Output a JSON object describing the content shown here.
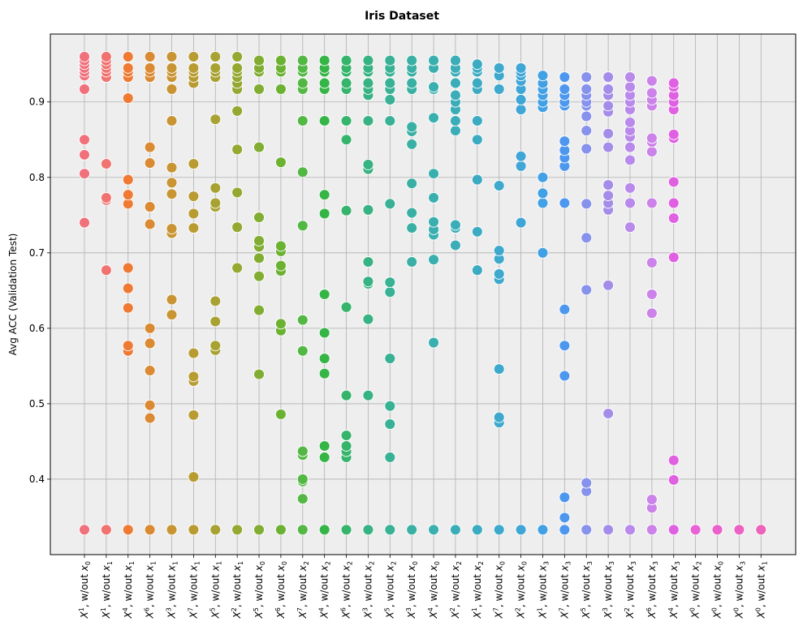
{
  "chart_data": {
    "type": "scatter",
    "title": "Iris Dataset",
    "xlabel": "",
    "ylabel": "Avg ACC (Validation Test)",
    "ylim": [
      0.3,
      0.99
    ],
    "yticks": [
      0.4,
      0.5,
      0.6,
      0.7,
      0.8,
      0.9
    ],
    "grid": true,
    "legend": "none",
    "categories": [
      {
        "pow": "1",
        "sub": "0"
      },
      {
        "pow": "1",
        "sub": "1"
      },
      {
        "pow": "4",
        "sub": "1"
      },
      {
        "pow": "6",
        "sub": "1"
      },
      {
        "pow": "3",
        "sub": "1"
      },
      {
        "pow": "7",
        "sub": "1"
      },
      {
        "pow": "5",
        "sub": "1"
      },
      {
        "pow": "2",
        "sub": "1"
      },
      {
        "pow": "5",
        "sub": "0"
      },
      {
        "pow": "6",
        "sub": "0"
      },
      {
        "pow": "7",
        "sub": "2"
      },
      {
        "pow": "4",
        "sub": "2"
      },
      {
        "pow": "6",
        "sub": "2"
      },
      {
        "pow": "3",
        "sub": "2"
      },
      {
        "pow": "5",
        "sub": "2"
      },
      {
        "pow": "3",
        "sub": "0"
      },
      {
        "pow": "4",
        "sub": "0"
      },
      {
        "pow": "2",
        "sub": "2"
      },
      {
        "pow": "1",
        "sub": "2"
      },
      {
        "pow": "7",
        "sub": "0"
      },
      {
        "pow": "2",
        "sub": "0"
      },
      {
        "pow": "1",
        "sub": "3"
      },
      {
        "pow": "7",
        "sub": "3"
      },
      {
        "pow": "5",
        "sub": "3"
      },
      {
        "pow": "3",
        "sub": "3"
      },
      {
        "pow": "2",
        "sub": "3"
      },
      {
        "pow": "6",
        "sub": "3"
      },
      {
        "pow": "4",
        "sub": "3"
      },
      {
        "pow": "0",
        "sub": "2"
      },
      {
        "pow": "0",
        "sub": "0"
      },
      {
        "pow": "0",
        "sub": "3"
      },
      {
        "pow": "0",
        "sub": "1"
      }
    ],
    "colors": [
      "#f0717b",
      "#f07370",
      "#ee7a34",
      "#da8a32",
      "#c99534",
      "#b89c32",
      "#a8a232",
      "#94a832",
      "#80ad32",
      "#6cb232",
      "#52b843",
      "#36b547",
      "#36b46b",
      "#37b282",
      "#38b194",
      "#39b0a3",
      "#3aafaf",
      "#3badb8",
      "#3cabc1",
      "#3ea9cc",
      "#3fa6d6",
      "#42a1e4",
      "#4d98ee",
      "#8692eb",
      "#a48de9",
      "#b98aeb",
      "#cb82e9",
      "#e060e2",
      "#e961d6",
      "#ea61cc",
      "#eb62c3",
      "#eb63ba"
    ],
    "series": [
      {
        "values": [
          0.333,
          0.74,
          0.805,
          0.83,
          0.85,
          0.917,
          0.935,
          0.94,
          0.945,
          0.95,
          0.955,
          0.96
        ]
      },
      {
        "values": [
          0.333,
          0.677,
          0.77,
          0.773,
          0.818,
          0.933,
          0.94,
          0.945,
          0.95,
          0.955,
          0.96
        ]
      },
      {
        "values": [
          0.333,
          0.57,
          0.577,
          0.627,
          0.653,
          0.68,
          0.765,
          0.777,
          0.797,
          0.905,
          0.933,
          0.94,
          0.945,
          0.96
        ]
      },
      {
        "values": [
          0.333,
          0.481,
          0.498,
          0.544,
          0.58,
          0.6,
          0.738,
          0.761,
          0.819,
          0.84,
          0.933,
          0.94,
          0.945,
          0.96
        ]
      },
      {
        "values": [
          0.333,
          0.618,
          0.638,
          0.726,
          0.732,
          0.778,
          0.793,
          0.813,
          0.875,
          0.917,
          0.933,
          0.94,
          0.945,
          0.96
        ]
      },
      {
        "values": [
          0.333,
          0.403,
          0.485,
          0.53,
          0.536,
          0.567,
          0.733,
          0.752,
          0.775,
          0.818,
          0.925,
          0.933,
          0.94,
          0.945,
          0.96
        ]
      },
      {
        "values": [
          0.333,
          0.571,
          0.577,
          0.609,
          0.636,
          0.761,
          0.766,
          0.786,
          0.877,
          0.933,
          0.94,
          0.945,
          0.96
        ]
      },
      {
        "values": [
          0.333,
          0.68,
          0.734,
          0.78,
          0.837,
          0.888,
          0.917,
          0.925,
          0.933,
          0.94,
          0.945,
          0.96
        ]
      },
      {
        "values": [
          0.333,
          0.539,
          0.624,
          0.669,
          0.693,
          0.708,
          0.716,
          0.747,
          0.84,
          0.917,
          0.94,
          0.945,
          0.955
        ]
      },
      {
        "values": [
          0.333,
          0.486,
          0.597,
          0.606,
          0.676,
          0.683,
          0.702,
          0.709,
          0.82,
          0.917,
          0.94,
          0.945,
          0.955
        ]
      },
      {
        "values": [
          0.333,
          0.374,
          0.397,
          0.4,
          0.432,
          0.437,
          0.57,
          0.611,
          0.736,
          0.807,
          0.875,
          0.917,
          0.925,
          0.94,
          0.945,
          0.955
        ]
      },
      {
        "values": [
          0.333,
          0.429,
          0.444,
          0.54,
          0.56,
          0.594,
          0.645,
          0.752,
          0.777,
          0.875,
          0.917,
          0.925,
          0.94,
          0.945,
          0.955
        ]
      },
      {
        "values": [
          0.333,
          0.429,
          0.437,
          0.444,
          0.458,
          0.511,
          0.628,
          0.756,
          0.85,
          0.875,
          0.917,
          0.925,
          0.94,
          0.945,
          0.955
        ]
      },
      {
        "values": [
          0.333,
          0.511,
          0.612,
          0.659,
          0.662,
          0.688,
          0.757,
          0.811,
          0.817,
          0.875,
          0.909,
          0.917,
          0.925,
          0.94,
          0.945,
          0.955
        ]
      },
      {
        "values": [
          0.333,
          0.429,
          0.473,
          0.497,
          0.56,
          0.648,
          0.661,
          0.765,
          0.875,
          0.903,
          0.917,
          0.925,
          0.94,
          0.945,
          0.955
        ]
      },
      {
        "values": [
          0.333,
          0.688,
          0.733,
          0.753,
          0.792,
          0.844,
          0.861,
          0.867,
          0.917,
          0.925,
          0.94,
          0.945,
          0.955
        ]
      },
      {
        "values": [
          0.333,
          0.581,
          0.691,
          0.724,
          0.731,
          0.741,
          0.773,
          0.805,
          0.879,
          0.917,
          0.92,
          0.945,
          0.955
        ]
      },
      {
        "values": [
          0.333,
          0.71,
          0.733,
          0.737,
          0.862,
          0.875,
          0.89,
          0.9,
          0.909,
          0.925,
          0.94,
          0.945,
          0.955
        ]
      },
      {
        "values": [
          0.333,
          0.677,
          0.728,
          0.797,
          0.85,
          0.875,
          0.917,
          0.925,
          0.94,
          0.945,
          0.95
        ]
      },
      {
        "values": [
          0.333,
          0.475,
          0.482,
          0.546,
          0.665,
          0.672,
          0.692,
          0.703,
          0.789,
          0.917,
          0.935,
          0.945
        ]
      },
      {
        "values": [
          0.333,
          0.74,
          0.815,
          0.828,
          0.89,
          0.903,
          0.917,
          0.928,
          0.935,
          0.94,
          0.945
        ]
      },
      {
        "values": [
          0.333,
          0.7,
          0.766,
          0.779,
          0.8,
          0.893,
          0.9,
          0.909,
          0.917,
          0.925,
          0.935
        ]
      },
      {
        "values": [
          0.333,
          0.349,
          0.376,
          0.537,
          0.577,
          0.625,
          0.766,
          0.815,
          0.826,
          0.836,
          0.848,
          0.895,
          0.9,
          0.909,
          0.917,
          0.933
        ]
      },
      {
        "values": [
          0.333,
          0.384,
          0.395,
          0.651,
          0.72,
          0.765,
          0.838,
          0.862,
          0.881,
          0.895,
          0.9,
          0.909,
          0.917,
          0.933
        ]
      },
      {
        "values": [
          0.333,
          0.487,
          0.657,
          0.757,
          0.766,
          0.776,
          0.79,
          0.84,
          0.858,
          0.887,
          0.895,
          0.909,
          0.917,
          0.933
        ]
      },
      {
        "values": [
          0.333,
          0.734,
          0.766,
          0.786,
          0.823,
          0.84,
          0.854,
          0.862,
          0.873,
          0.89,
          0.9,
          0.909,
          0.92,
          0.933
        ]
      },
      {
        "values": [
          0.333,
          0.362,
          0.373,
          0.62,
          0.645,
          0.687,
          0.766,
          0.834,
          0.847,
          0.852,
          0.895,
          0.903,
          0.912,
          0.928
        ]
      },
      {
        "values": [
          0.333,
          0.399,
          0.425,
          0.694,
          0.746,
          0.766,
          0.794,
          0.852,
          0.857,
          0.89,
          0.9,
          0.909,
          0.92,
          0.925
        ]
      },
      {
        "values": [
          0.333
        ]
      },
      {
        "values": [
          0.333
        ]
      },
      {
        "values": [
          0.333
        ]
      },
      {
        "values": [
          0.333
        ]
      }
    ]
  }
}
